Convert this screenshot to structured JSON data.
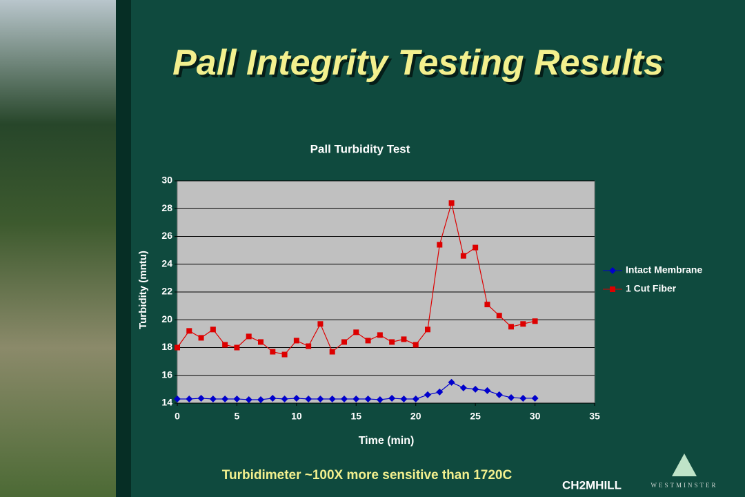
{
  "slide": {
    "title": "Pall Integrity Testing Results",
    "footnote": "Turbidimeter ~100X more sensitive than 1720C",
    "logo": "CH2MHILL",
    "partner": "WESTMINSTER"
  },
  "chart_data": {
    "type": "line",
    "title": "Pall Turbidity Test",
    "x_label": "Time (min)",
    "y_label": "Turbidity (mntu)",
    "x": [
      0,
      1,
      2,
      3,
      4,
      5,
      6,
      7,
      8,
      9,
      10,
      11,
      12,
      13,
      14,
      15,
      16,
      17,
      18,
      19,
      20,
      21,
      22,
      23,
      24,
      25,
      26,
      27,
      28,
      29,
      30
    ],
    "series": [
      {
        "name": "Intact Membrane",
        "color": "#0000cc",
        "marker": "diamond",
        "values": [
          14.3,
          14.3,
          14.35,
          14.3,
          14.3,
          14.3,
          14.25,
          14.25,
          14.35,
          14.3,
          14.35,
          14.3,
          14.3,
          14.3,
          14.3,
          14.3,
          14.3,
          14.25,
          14.35,
          14.3,
          14.3,
          14.6,
          14.8,
          15.5,
          15.1,
          15.0,
          14.9,
          14.6,
          14.4,
          14.35,
          14.35
        ]
      },
      {
        "name": "1 Cut Fiber",
        "color": "#dd0000",
        "marker": "square",
        "values": [
          18.0,
          19.2,
          18.7,
          19.3,
          18.2,
          18.0,
          18.8,
          18.4,
          17.7,
          17.5,
          18.5,
          18.1,
          19.7,
          17.7,
          18.4,
          19.1,
          18.5,
          18.9,
          18.4,
          18.6,
          18.2,
          19.3,
          25.4,
          28.4,
          24.6,
          25.2,
          21.1,
          20.3,
          19.5,
          19.7,
          19.9
        ]
      }
    ],
    "xlim": [
      0,
      35
    ],
    "xticks": [
      0,
      5,
      10,
      15,
      20,
      25,
      30,
      35
    ],
    "ylim": [
      14,
      30
    ],
    "yticks": [
      14,
      16,
      18,
      20,
      22,
      24,
      26,
      28,
      30
    ],
    "grid": true,
    "legend": "right"
  }
}
